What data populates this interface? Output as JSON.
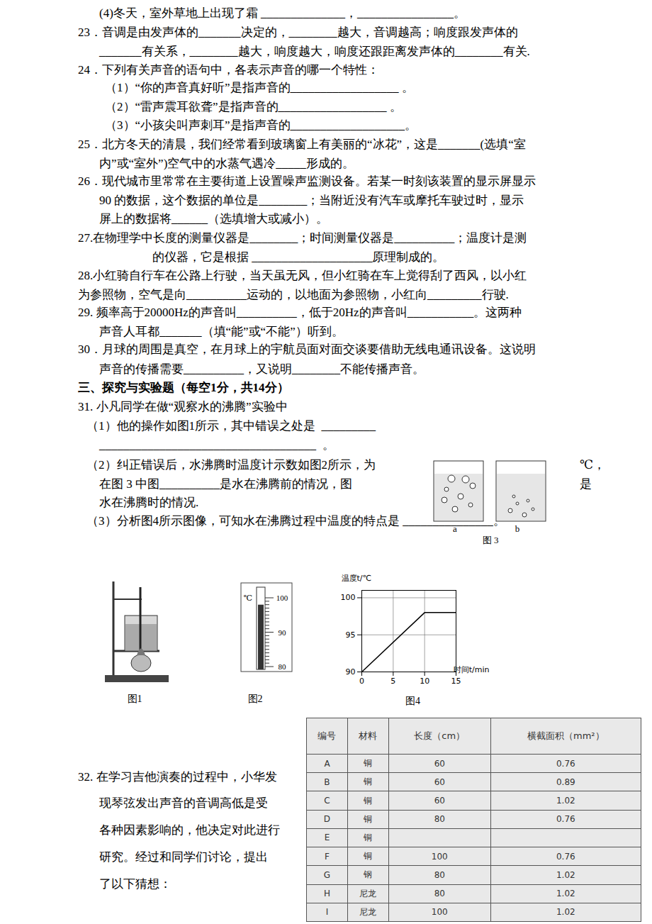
{
  "document": {
    "lines": [
      "(4)冬天，室外草地上出现了霜 ______________，________________。",
      "23．音调是由发声体的_______决定的，________越大，音调越高；响度跟发声体的",
      "_______有关系，________越大，响度越大，响度还跟距离发声体的________有关.",
      "24．下列有关声音的语句中，各表示声音的哪一个特性：",
      "（1）“你的声音真好听”是指声音的__________________ 。",
      "（2）“雷声震耳欲聋”是指声音的__________________ 。",
      "（3）“小孩尖叫声刺耳”是指声音的___________________。",
      "25．北方冬天的清晨，我们经常看到玻璃窗上有美丽的“冰花”，这是_______(选填“室",
      "内”或“室外”)空气中的水蒸气遇冷_____形成的。",
      "26．现代城市里常常在主要街道上设置噪声监测设备。若某一时刻该装置的显示屏显示",
      "90 的数据，这个数据的单位是________；当附近没有汽车或摩托车驶过时，显示",
      "屏上的数据将______（选填增大或减小）。",
      "27.在物理学中长度的测量仪器是________；时间测量仪器是__________；温度计是测",
      "的仪器，它是根据 ____________________原理制成的。",
      "28.小红骑自行车在公路上行驶，当天虽无风，但小红骑在车上觉得刮了西风，以小红",
      "为参照物，空气是向__________运动的，以地面为参照物，小红向_________行驶.",
      "29. 频率高于20000Hz的声音叫__________，低于20Hz的声音叫___________。这两种",
      "声音人耳都_______（填“能”或“不能”）听到。",
      "30．月球的周围是真空，在月球上的宇航员面对面交谈要借助无线电通讯设备。这说明",
      "声音的传播需要__________，又说明________不能传播声音。",
      "三、探究与实验题（每空1分，共14分）",
      "31. 小凡同学在做“观察水的沸腾”实验中",
      "（1）他的操作如图1所示，其中错误之处是  _________",
      "____________________________________  。",
      "（2）纠正错误后，水沸腾时温度计示数如图2所示，为",
      "℃，",
      "在图 3 中图__________是水在沸腾前的情况，图",
      "是",
      "水在沸腾时的情况.",
      "（3）分析图4所示图像，可知水在沸腾过程中温度的特点是 _______________。",
      "32. 在学习吉他演奏的过程中，小华发",
      "现琴弦发出声音的音调高低是受",
      "各种因素影响的，他决定对此进行",
      "研究。经过和同学们讨论，提出",
      "了以下猜想："
    ],
    "figure1": {
      "label": "图1"
    },
    "figure2": {
      "label": "图2",
      "unit": "℃",
      "scale_ticks": [
        100,
        90,
        80
      ],
      "reading": 98
    },
    "figure3": {
      "label": "图 3",
      "beakers": [
        "a",
        "b"
      ]
    },
    "figure4": {
      "label": "图4"
    },
    "table": {
      "header": [
        "编号",
        "材料",
        "长度（cm）",
        "横截面积（mm²）"
      ],
      "rows": [
        [
          "A",
          "铜",
          60,
          0.76
        ],
        [
          "B",
          "铜",
          60,
          0.89
        ],
        [
          "C",
          "铜",
          60,
          1.02
        ],
        [
          "D",
          "铜",
          80,
          0.76
        ],
        [
          "E",
          "铜",
          null,
          null
        ],
        [
          "F",
          "铜",
          100,
          0.76
        ],
        [
          "G",
          "钢",
          80,
          1.02
        ],
        [
          "H",
          "尼龙",
          80,
          1.02
        ],
        [
          "I",
          "尼龙",
          100,
          1.02
        ]
      ]
    }
  },
  "chart_data": {
    "type": "line",
    "x_label": "时间t/min",
    "y_label": "温度t/℃",
    "x": [
      0,
      10,
      15
    ],
    "values": [
      90,
      98,
      98
    ],
    "xlim": [
      0,
      15
    ],
    "ylim": [
      90,
      101
    ],
    "xticks": [
      0,
      5,
      10,
      15
    ],
    "yticks": [
      90,
      95,
      100
    ],
    "grid": true,
    "color": "#000000"
  }
}
